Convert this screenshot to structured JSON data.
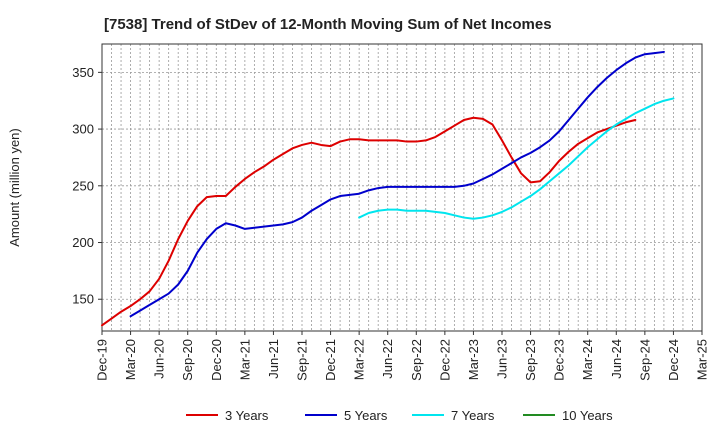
{
  "chart_data": {
    "type": "line",
    "title": "[7538]  Trend of StDev of 12-Month Moving Sum of Net Incomes",
    "xlabel": "",
    "ylabel": "Amount (million yen)",
    "x_ticks": [
      "Dec-19",
      "Mar-20",
      "Jun-20",
      "Sep-20",
      "Dec-20",
      "Mar-21",
      "Jun-21",
      "Sep-21",
      "Dec-21",
      "Mar-22",
      "Jun-22",
      "Sep-22",
      "Dec-22",
      "Mar-23",
      "Jun-23",
      "Sep-23",
      "Dec-23",
      "Mar-24",
      "Jun-24",
      "Sep-24",
      "Dec-24",
      "Mar-25"
    ],
    "y_ticks": [
      150,
      200,
      250,
      300,
      350
    ],
    "ylim": [
      122,
      375
    ],
    "grid": true,
    "legend_position": "bottom",
    "series": [
      {
        "name": "3 Years",
        "color": "#dd0000",
        "start": "Dec-19",
        "values": [
          127,
          133,
          139,
          144,
          150,
          157,
          168,
          184,
          203,
          219,
          232,
          240,
          241,
          241,
          249,
          256,
          262,
          267,
          273,
          278,
          283,
          286,
          288,
          286,
          285,
          289,
          291,
          291,
          290,
          290,
          290,
          290,
          289,
          289,
          290,
          293,
          298,
          303,
          308,
          310,
          309,
          304,
          290,
          275,
          261,
          253,
          254,
          262,
          272,
          280,
          287,
          292,
          297,
          300,
          303,
          306,
          308
        ]
      },
      {
        "name": "5 Years",
        "color": "#0000cc",
        "start": "Mar-20",
        "values": [
          135,
          140,
          145,
          150,
          155,
          163,
          175,
          191,
          203,
          212,
          217,
          215,
          212,
          213,
          214,
          215,
          216,
          218,
          222,
          228,
          233,
          238,
          241,
          242,
          243,
          246,
          248,
          249,
          249,
          249,
          249,
          249,
          249,
          249,
          249,
          250,
          252,
          256,
          260,
          265,
          270,
          275,
          279,
          284,
          290,
          298,
          308,
          318,
          328,
          337,
          345,
          352,
          358,
          363,
          366,
          367,
          368
        ]
      },
      {
        "name": "7 Years",
        "color": "#00e5ee",
        "start": "Mar-22",
        "values": [
          222,
          226,
          228,
          229,
          229,
          228,
          228,
          228,
          227,
          226,
          224,
          222,
          221,
          222,
          224,
          227,
          231,
          236,
          241,
          247,
          254,
          261,
          268,
          276,
          284,
          291,
          298,
          304,
          309,
          314,
          318,
          322,
          325,
          327
        ]
      },
      {
        "name": "10 Years",
        "color": "#228b22",
        "start": "Mar-25",
        "values": []
      }
    ]
  }
}
